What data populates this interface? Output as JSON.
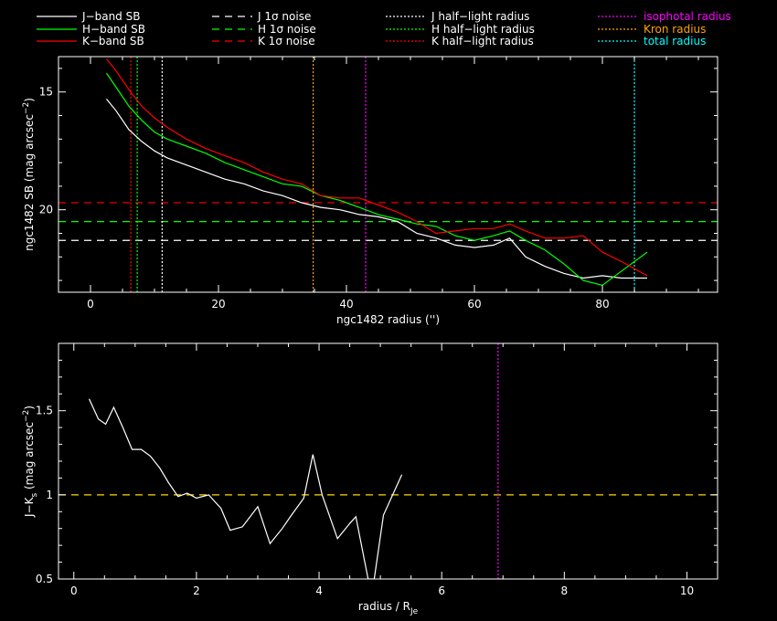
{
  "legend": [
    {
      "label": "J−band SB",
      "color": "#ffffff",
      "style": "solid"
    },
    {
      "label": "H−band SB",
      "color": "#00ff00",
      "style": "solid"
    },
    {
      "label": "K−band SB",
      "color": "#ff0000",
      "style": "solid"
    },
    {
      "label": "J 1σ noise",
      "color": "#ffffff",
      "style": "dashed"
    },
    {
      "label": "H 1σ noise",
      "color": "#00ff00",
      "style": "dashed"
    },
    {
      "label": "K 1σ noise",
      "color": "#ff0000",
      "style": "dashed"
    },
    {
      "label": "J half−light radius",
      "color": "#ffffff",
      "style": "dotted"
    },
    {
      "label": "H half−light radius",
      "color": "#00ff00",
      "style": "dotted"
    },
    {
      "label": "K half−light radius",
      "color": "#ff0000",
      "style": "dotted"
    },
    {
      "label": "isophotal radius",
      "color": "#ff00ff",
      "style": "dotted",
      "text_color": "#ff00ff"
    },
    {
      "label": "Kron radius",
      "color": "#ffa500",
      "style": "dotted",
      "text_color": "#ffa500"
    },
    {
      "label": "total radius",
      "color": "#00ffff",
      "style": "dotted",
      "text_color": "#00ffff"
    }
  ],
  "chart_data": [
    {
      "type": "line",
      "xlabel": "ngc1482 radius ('')",
      "ylabel": "ngc1482 SB (mag arcsec",
      "ylabel_sup": "−2",
      "ylabel_close": ")",
      "xlim": [
        -5,
        98
      ],
      "ylim": [
        23.5,
        13.5
      ],
      "xticks": [
        0,
        20,
        40,
        60,
        80
      ],
      "yticks": [
        15,
        20
      ],
      "series": [
        {
          "name": "J−band SB",
          "color": "#ffffff",
          "x": [
            2.5,
            4,
            6,
            8,
            10,
            12,
            15,
            18,
            21,
            24,
            27,
            30,
            33,
            36,
            39,
            42,
            45,
            48,
            51,
            54,
            57,
            60,
            63,
            65.5,
            68,
            71,
            74,
            77,
            80,
            83,
            87
          ],
          "y": [
            15.3,
            15.8,
            16.6,
            17.1,
            17.5,
            17.8,
            18.1,
            18.4,
            18.7,
            18.9,
            19.2,
            19.4,
            19.7,
            19.9,
            20.0,
            20.2,
            20.3,
            20.5,
            21.0,
            21.2,
            21.5,
            21.6,
            21.5,
            21.2,
            22.0,
            22.4,
            22.7,
            22.9,
            22.8,
            22.9,
            22.9
          ]
        },
        {
          "name": "H−band SB",
          "color": "#00ff00",
          "x": [
            2.5,
            4,
            6,
            8,
            10,
            12,
            15,
            18,
            21,
            24,
            27,
            30,
            33,
            36,
            39,
            42,
            45,
            48,
            51,
            54,
            57,
            60,
            63,
            65.5,
            68,
            71,
            74,
            77,
            80,
            83,
            87
          ],
          "y": [
            14.2,
            14.8,
            15.6,
            16.2,
            16.7,
            17.0,
            17.3,
            17.6,
            18.0,
            18.3,
            18.6,
            18.9,
            19.0,
            19.4,
            19.6,
            19.9,
            20.2,
            20.4,
            20.6,
            20.7,
            21.1,
            21.3,
            21.1,
            20.9,
            21.3,
            21.7,
            22.3,
            23.0,
            23.2,
            22.6,
            21.8
          ]
        },
        {
          "name": "K−band SB",
          "color": "#ff0000",
          "x": [
            2.5,
            4,
            6,
            8,
            10,
            12,
            15,
            18,
            21,
            24,
            27,
            30,
            33,
            36,
            39,
            42,
            45,
            48,
            51,
            54,
            57,
            60,
            63,
            65.5,
            68,
            71,
            74,
            77,
            80,
            83,
            87
          ],
          "y": [
            13.6,
            14.1,
            14.9,
            15.6,
            16.1,
            16.5,
            17.0,
            17.4,
            17.7,
            18.0,
            18.4,
            18.7,
            18.9,
            19.4,
            19.5,
            19.5,
            19.8,
            20.1,
            20.5,
            21.0,
            20.9,
            20.8,
            20.8,
            20.6,
            20.9,
            21.2,
            21.2,
            21.1,
            21.8,
            22.2,
            22.8
          ]
        }
      ],
      "hlines": [
        {
          "name": "J 1σ noise",
          "y": 21.3,
          "color": "#ffffff"
        },
        {
          "name": "H 1σ noise",
          "y": 20.5,
          "color": "#00ff00"
        },
        {
          "name": "K 1σ noise",
          "y": 19.7,
          "color": "#ff0000"
        }
      ],
      "vlines": [
        {
          "name": "J half−light radius",
          "x": 11.2,
          "color": "#ffffff"
        },
        {
          "name": "H half−light radius",
          "x": 7.3,
          "color": "#00ff00"
        },
        {
          "name": "K half−light radius",
          "x": 6.3,
          "color": "#ff0000"
        },
        {
          "name": "Kron radius",
          "x": 34.8,
          "color": "#ffa500"
        },
        {
          "name": "isophotal radius",
          "x": 43.0,
          "color": "#ff00ff"
        },
        {
          "name": "total radius",
          "x": 85.0,
          "color": "#00ffff"
        }
      ]
    },
    {
      "type": "line",
      "xlabel": "radius / R",
      "xlabel_sub": "Je",
      "ylabel": "J−K",
      "ylabel_sub": "s",
      "ylabel_rest": " (mag arcsec",
      "ylabel_sup": "−2",
      "ylabel_close": ")",
      "xlim": [
        -0.25,
        10.5
      ],
      "ylim": [
        0.5,
        1.9
      ],
      "xticks": [
        0,
        2,
        4,
        6,
        8,
        10
      ],
      "yticks": [
        0.5,
        1,
        1.5
      ],
      "ytick_labels": [
        "0.5",
        "1",
        "1.5"
      ],
      "series": [
        {
          "name": "J−K",
          "color": "#ffffff",
          "x": [
            0.25,
            0.4,
            0.52,
            0.65,
            0.8,
            0.95,
            1.1,
            1.25,
            1.4,
            1.55,
            1.7,
            1.85,
            2.0,
            2.2,
            2.4,
            2.55,
            2.75,
            3.0,
            3.2,
            3.4,
            3.55,
            3.75,
            3.9,
            4.05,
            4.3,
            4.5,
            4.6,
            4.8,
            4.9,
            5.05,
            5.35
          ],
          "y": [
            1.57,
            1.45,
            1.42,
            1.52,
            1.4,
            1.27,
            1.27,
            1.23,
            1.16,
            1.07,
            0.99,
            1.01,
            0.98,
            1.0,
            0.92,
            0.79,
            0.81,
            0.93,
            0.71,
            0.8,
            0.88,
            0.98,
            1.24,
            1.0,
            0.74,
            0.83,
            0.87,
            0.5,
            0.5,
            0.88,
            1.12
          ]
        }
      ],
      "hlines": [
        {
          "y": 1.0,
          "color": "#ffd700"
        }
      ],
      "vlines": [
        {
          "x": 6.92,
          "color": "#ff00ff"
        }
      ]
    }
  ]
}
